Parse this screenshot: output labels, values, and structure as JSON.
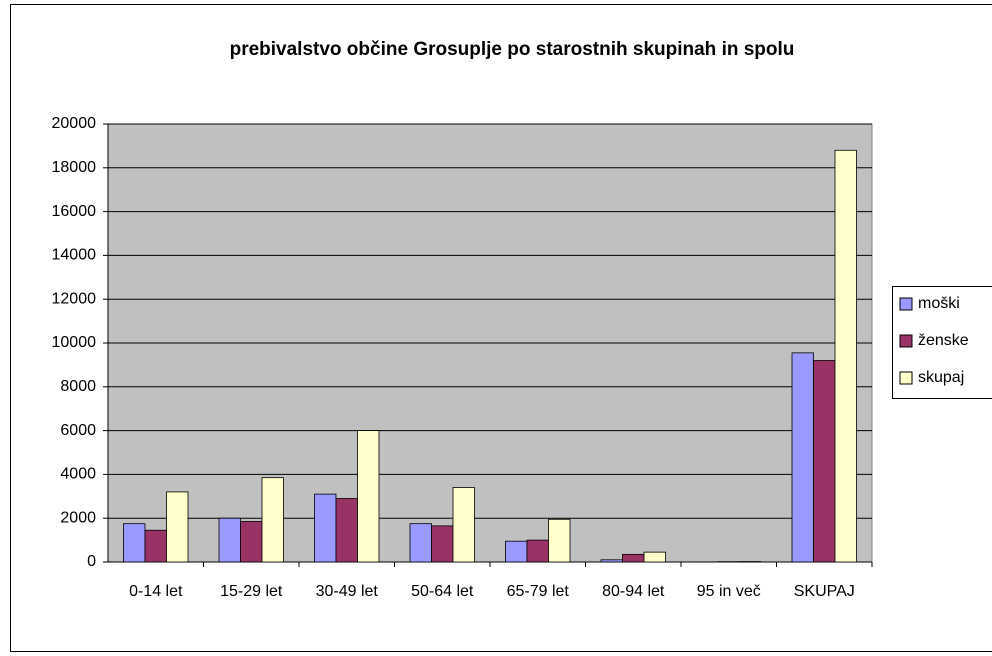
{
  "chart_data": {
    "type": "bar",
    "title": "prebivalstvo občine Grosuplje po starostnih skupinah in spolu",
    "categories": [
      "0-14 let",
      "15-29 let",
      "30-49 let",
      "50-64 let",
      "65-79 let",
      "80-94 let",
      "95 in več",
      "SKUPAJ"
    ],
    "series": [
      {
        "name": "moški",
        "color": "#9999ff",
        "values": [
          1750,
          2000,
          3100,
          1750,
          950,
          100,
          5,
          9550
        ]
      },
      {
        "name": "ženske",
        "color": "#993366",
        "values": [
          1450,
          1850,
          2900,
          1650,
          1000,
          350,
          15,
          9200
        ]
      },
      {
        "name": "skupaj",
        "color": "#ffffcc",
        "values": [
          3200,
          3850,
          6000,
          3400,
          1950,
          450,
          20,
          18800
        ]
      }
    ],
    "ylim": [
      0,
      20000
    ],
    "yticks": [
      0,
      2000,
      4000,
      6000,
      8000,
      10000,
      12000,
      14000,
      16000,
      18000,
      20000
    ],
    "grid": true,
    "legend": "right"
  }
}
